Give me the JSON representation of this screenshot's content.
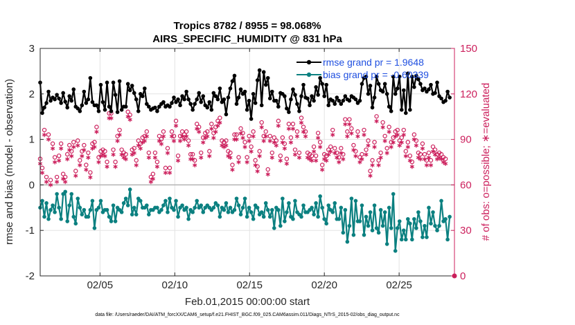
{
  "chart_data": {
    "type": "line",
    "title_line1": "Tropics 8782 / 8955 = 98.068%",
    "title_line2": "AIRS_SPECIFIC_HUMIDITY @ 831 hPa",
    "xlabel": "Feb.01,2015 00:00:00 start",
    "ylabel_left": "rmse and bias (model - observation)",
    "ylabel_right": "# of obs: o=possible; ∗=evaluated",
    "xlim": [
      1,
      28.7
    ],
    "ylim_left": [
      -2,
      3
    ],
    "ylim_right": [
      0,
      150
    ],
    "x_ticks": [
      5,
      10,
      15,
      20,
      25
    ],
    "x_tick_labels": [
      "02/05",
      "02/10",
      "02/15",
      "02/20",
      "02/25"
    ],
    "y_ticks_left": [
      -2,
      -1,
      0,
      1,
      2,
      3
    ],
    "y_tick_labels_left": [
      "-2",
      "-1",
      "0",
      "1",
      "2",
      "3"
    ],
    "y_ticks_right": [
      0,
      30,
      60,
      90,
      120,
      150
    ],
    "y_tick_labels_right": [
      "0",
      "30",
      "60",
      "90",
      "120",
      "150"
    ],
    "grid": true,
    "legend_position": "top-right",
    "legend": [
      {
        "label": "rmse grand pr = 1.9648",
        "color": "#000000"
      },
      {
        "label": "bias grand pr = -0.60339",
        "color": "#0b8080"
      }
    ],
    "colors": {
      "rmse": "#000000",
      "bias": "#0b8080",
      "obs": "#cc1f5c",
      "zero_line": "#b3b3b3"
    },
    "series": [
      {
        "name": "rmse",
        "axis": "left",
        "values": [
          2.25,
          1.58,
          1.7,
          1.8,
          2.05,
          1.85,
          1.92,
          1.88,
          1.98,
          1.9,
          1.8,
          2.02,
          1.83,
          1.7,
          1.95,
          1.85,
          2.1,
          1.72,
          1.68,
          1.62,
          1.75,
          2.05,
          1.8,
          1.88,
          2.35,
          1.82,
          1.75,
          1.75,
          1.62,
          2.2,
          1.82,
          1.65,
          2.25,
          1.72,
          1.62,
          2.25,
          1.98,
          1.6,
          2.28,
          1.65,
          1.72,
          1.72,
          2.22,
          2.08,
          2.18,
          2.02,
          1.88,
          1.62,
          2.0,
          1.95,
          2.12,
          1.78,
          1.72,
          1.65,
          1.68,
          1.7,
          1.62,
          1.72,
          1.78,
          1.82,
          1.72,
          1.75,
          1.72,
          1.8,
          1.92,
          1.82,
          1.88,
          1.75,
          1.95,
          1.88,
          2.05,
          1.88,
          1.78,
          1.65,
          1.78,
          1.88,
          2.02,
          1.82,
          1.95,
          1.75,
          1.7,
          1.82,
          1.65,
          2.02,
          1.95,
          1.88,
          2.12,
          1.82,
          1.88,
          1.55,
          1.92,
          2.12,
          2.28,
          2.4,
          1.78,
          1.92,
          2.1,
          2.0,
          2.05,
          1.65,
          1.85,
          1.45,
          2.0,
          1.8,
          2.3,
          2.52,
          1.75,
          2.48,
          2.2,
          2.35,
          1.9,
          2.05,
          1.85,
          1.85,
          1.72,
          2.02,
          2.0,
          1.95,
          1.68,
          1.6,
          1.88,
          2.1,
          1.98,
          1.78,
          1.62,
          1.95,
          2.2,
          1.92,
          1.9,
          1.75,
          1.95,
          1.85,
          2.15,
          1.98,
          2.35,
          2.22,
          1.95,
          2.2,
          1.75,
          1.88,
          1.85,
          1.78,
          1.92,
          1.85,
          1.78,
          1.85,
          1.95,
          1.88,
          1.85,
          1.95,
          1.92,
          1.88,
          1.8,
          1.85,
          2.22,
          2.35,
          2.38,
          2.0,
          2.18,
          1.7,
          1.92,
          2.38,
          2.22,
          2.08,
          2.05,
          2.22,
          2.0,
          1.72,
          1.62,
          2.38,
          2.0,
          2.12,
          2.38,
          1.65,
          2.08,
          1.58,
          2.45,
          1.65,
          2.38,
          2.15,
          2.4,
          2.32,
          2.22,
          2.08,
          2.12,
          2.05,
          2.1,
          2.2,
          2.0,
          2.02,
          2.25,
          1.95,
          1.9,
          1.82,
          1.85,
          2.05,
          1.92
        ],
        "x_start": 1,
        "x_step": 0.1397
      },
      {
        "name": "bias",
        "axis": "left",
        "values": [
          -0.5,
          -0.35,
          -0.7,
          -0.4,
          -0.75,
          -0.55,
          -0.45,
          -0.6,
          -0.2,
          -0.5,
          -0.75,
          -0.2,
          -0.15,
          -0.8,
          -0.45,
          -0.2,
          -0.7,
          -0.85,
          -0.3,
          -0.5,
          -0.65,
          -0.55,
          -0.7,
          -0.7,
          -0.55,
          -0.35,
          -0.95,
          -0.55,
          -0.5,
          -0.35,
          -0.6,
          -0.55,
          -0.55,
          -0.7,
          -0.8,
          -0.45,
          -0.8,
          -0.5,
          -0.55,
          -0.6,
          -0.4,
          -0.3,
          -0.45,
          -0.1,
          -0.65,
          -0.5,
          -0.65,
          -0.3,
          -0.35,
          -0.5,
          -0.5,
          -0.45,
          -0.65,
          -0.55,
          -0.55,
          -0.5,
          -0.5,
          -0.6,
          -0.55,
          -0.45,
          -0.35,
          -0.6,
          -0.3,
          -0.5,
          -0.55,
          -0.35,
          -0.7,
          -0.5,
          -0.45,
          -0.55,
          -0.5,
          -0.75,
          -0.55,
          -0.6,
          -0.5,
          -0.35,
          -0.5,
          -0.45,
          -0.6,
          -0.5,
          -0.45,
          -0.5,
          -0.55,
          -0.5,
          -0.4,
          -0.45,
          -0.7,
          -0.5,
          -0.55,
          -0.4,
          -0.6,
          -0.5,
          -0.6,
          -0.55,
          -0.3,
          -0.45,
          -0.65,
          -0.5,
          -0.3,
          -0.7,
          -0.5,
          -0.6,
          -0.75,
          -0.45,
          -0.5,
          -0.65,
          -0.6,
          -0.7,
          -0.4,
          -0.55,
          -0.7,
          -0.55,
          -0.95,
          -0.5,
          -0.55,
          -0.9,
          -0.3,
          -0.8,
          -0.6,
          -0.4,
          -0.7,
          -0.75,
          -0.35,
          -0.6,
          -0.65,
          -0.7,
          -0.45,
          -0.6,
          -0.6,
          -0.55,
          -0.5,
          -0.65,
          -0.4,
          -0.7,
          -0.25,
          -0.5,
          -0.75,
          -0.85,
          -0.45,
          -0.55,
          -0.6,
          -0.4,
          -0.75,
          -0.75,
          -0.5,
          -1.05,
          -0.55,
          -1.25,
          -0.9,
          -0.3,
          -1.1,
          -0.35,
          -0.8,
          -0.8,
          -0.45,
          -1.1,
          -0.7,
          -0.9,
          -0.6,
          -1.0,
          -0.45,
          -0.95,
          -1.05,
          -0.55,
          -0.9,
          -0.6,
          -1.3,
          -0.5,
          -0.95,
          -0.2,
          -1.45,
          -0.95,
          -0.8,
          -1.2,
          -1.0,
          -1.2,
          -0.75,
          -0.85,
          -1.2,
          -0.75,
          -0.95,
          -0.6,
          -0.8,
          -1.15,
          -0.9,
          -1.15,
          -0.5,
          -0.85,
          -0.6,
          -0.9,
          -1.0,
          -0.9,
          -0.35,
          -0.8,
          -0.75,
          -1.2,
          -0.7
        ],
        "x_start": 1,
        "x_step": 0.1397
      },
      {
        "name": "obs_possible",
        "axis": "right",
        "marker": "o",
        "values": [
          74,
          68,
          93,
          62,
          90,
          60,
          84,
          75,
          62,
          76,
          84,
          64,
          62,
          77,
          83,
          79,
          85,
          66,
          86,
          73,
          79,
          83,
          70,
          78,
          65,
          84,
          85,
          95,
          75,
          79,
          80,
          79,
          72,
          104,
          104,
          80,
          72,
          89,
          93,
          80,
          78,
          77,
          105,
          103,
          80,
          81,
          73,
          86,
          84,
          88,
          89,
          92,
          78,
          62,
          64,
          78,
          72,
          89,
          87,
          92,
          68,
          81,
          68,
          92,
          89,
          99,
          76,
          89,
          92,
          90,
          92,
          86,
          77,
          77,
          73,
          97,
          95,
          78,
          88,
          91,
          92,
          79,
          97,
          91,
          95,
          99,
          101,
          86,
          85,
          86,
          79,
          78,
          70,
          90,
          90,
          75,
          94,
          91,
          85,
          75,
          89,
          82,
          92,
          73,
          69,
          79,
          98,
          89,
          92,
          67,
          89,
          78,
          88,
          86,
          99,
          76,
          88,
          84,
          74,
          97,
          88,
          97,
          80,
          92,
          78,
          101,
          95,
          92,
          78,
          77,
          76,
          82,
          76,
          91,
          85,
          70,
          77,
          76,
          80,
          82,
          93,
          81,
          78,
          75,
          81,
          77,
          100,
          92,
          100,
          94,
          83,
          79,
          92,
          75,
          77,
          93,
          80,
          86,
          66,
          73,
          85,
          102,
          73,
          78,
          98,
          89,
          81,
          95,
          85,
          88,
          92,
          93,
          86,
          88,
          93,
          79,
          85,
          76,
          72,
          90,
          86,
          78,
          77,
          84,
          77,
          73,
          78,
          73,
          82,
          80,
          77,
          78,
          77,
          75,
          74
        ],
        "x_start": 1,
        "x_step": 0.1397
      },
      {
        "name": "obs_evaluated",
        "axis": "right",
        "marker": "*",
        "values": [
          74,
          68,
          93,
          62,
          90,
          60,
          84,
          75,
          62,
          76,
          84,
          64,
          62,
          77,
          83,
          79,
          85,
          66,
          86,
          73,
          79,
          83,
          70,
          78,
          65,
          84,
          85,
          95,
          75,
          79,
          80,
          79,
          72,
          104,
          104,
          80,
          72,
          89,
          93,
          80,
          78,
          77,
          105,
          103,
          80,
          81,
          73,
          86,
          84,
          88,
          89,
          92,
          78,
          62,
          64,
          78,
          72,
          89,
          87,
          92,
          68,
          81,
          68,
          92,
          89,
          99,
          76,
          89,
          92,
          90,
          92,
          86,
          77,
          77,
          73,
          97,
          95,
          78,
          88,
          91,
          92,
          79,
          97,
          91,
          95,
          99,
          101,
          86,
          85,
          86,
          79,
          78,
          70,
          90,
          90,
          75,
          94,
          91,
          85,
          75,
          89,
          82,
          92,
          73,
          69,
          79,
          98,
          89,
          92,
          67,
          89,
          78,
          88,
          86,
          99,
          76,
          88,
          84,
          74,
          97,
          88,
          97,
          80,
          92,
          78,
          101,
          95,
          92,
          78,
          77,
          76,
          82,
          76,
          91,
          85,
          70,
          77,
          76,
          80,
          82,
          93,
          81,
          78,
          75,
          81,
          77,
          100,
          92,
          100,
          94,
          83,
          79,
          92,
          75,
          77,
          93,
          80,
          86,
          66,
          73,
          85,
          102,
          73,
          78,
          98,
          89,
          81,
          95,
          85,
          88,
          92,
          93,
          86,
          88,
          93,
          79,
          85,
          76,
          72,
          90,
          86,
          78,
          77,
          84,
          77,
          73,
          78,
          73,
          82,
          80,
          77,
          78,
          77,
          75,
          74
        ],
        "x_start": 1,
        "x_step": 0.1397
      }
    ]
  },
  "footnote": "data file: /Users/raeder/DAI/ATM_forcXX/CAM6_setup/f.e21.FHIST_BGC.f09_025.CAM6assim.011/Diags_NTrS_2015-02/obs_diag_output.nc"
}
